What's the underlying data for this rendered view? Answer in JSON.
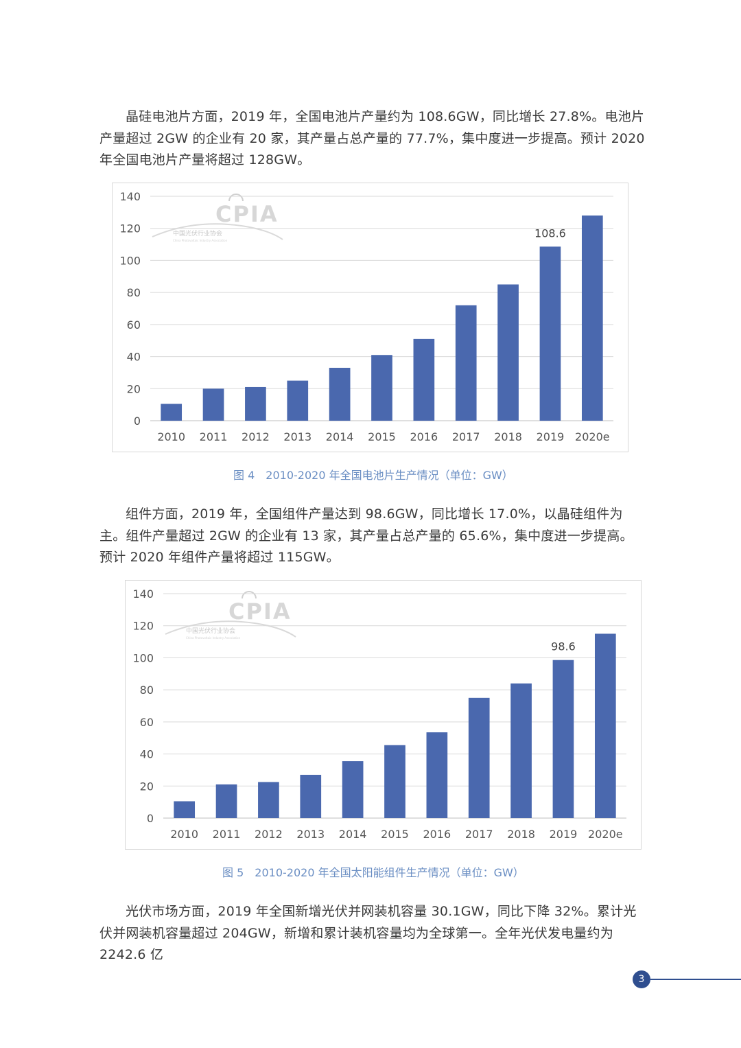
{
  "paragraphs": {
    "p1": "晶硅电池片方面，2019 年，全国电池片产量约为 108.6GW，同比增长 27.8%。电池片产量超过 2GW 的企业有 20 家，其产量占总产量的 77.7%，集中度进一步提高。预计 2020 年全国电池片产量将超过 128GW。",
    "p2": "组件方面，2019 年，全国组件产量达到 98.6GW，同比增长 17.0%，以晶硅组件为主。组件产量超过 2GW 的企业有 13 家，其产量占总产量的 65.6%，集中度进一步提高。预计 2020 年组件产量将超过 115GW。",
    "p3": "光伏市场方面，2019 年全国新增光伏并网装机容量 30.1GW，同比下降 32%。累计光伏并网装机容量超过 204GW，新增和累计装机容量均为全球第一。全年光伏发电量约为 2242.6 亿"
  },
  "captions": {
    "fig4_num": "图 4",
    "fig4_text": "2010-2020 年全国电池片生产情况（单位：GW）",
    "fig5_num": "图 5",
    "fig5_text": "2010-2020 年全国太阳能组件生产情况（单位：GW）"
  },
  "logo": {
    "name": "CPIA",
    "subtitle": "中国光伏行业协会",
    "subtitle_en": "China Photovoltaic Industry Association"
  },
  "page_number": "3",
  "colors": {
    "bar": "#4a68ae",
    "caption": "#6a8ec3",
    "page_badge": "#2f4e8f",
    "grid": "#d9d9d9"
  },
  "chart_data": [
    {
      "type": "bar",
      "categories": [
        "2010",
        "2011",
        "2012",
        "2013",
        "2014",
        "2015",
        "2016",
        "2017",
        "2018",
        "2019",
        "2020e"
      ],
      "values": [
        10.5,
        20,
        21,
        25,
        33,
        41,
        51,
        72,
        85,
        108.6,
        128
      ],
      "data_labels": {
        "2019": "108.6"
      },
      "ylim": [
        0,
        140
      ],
      "yticks": [
        0,
        20,
        40,
        60,
        80,
        100,
        120,
        140
      ],
      "grid": true
    },
    {
      "type": "bar",
      "categories": [
        "2010",
        "2011",
        "2012",
        "2013",
        "2014",
        "2015",
        "2016",
        "2017",
        "2018",
        "2019",
        "2020e"
      ],
      "values": [
        10.5,
        21,
        22.5,
        27,
        35.5,
        45.5,
        53.5,
        75,
        84,
        98.6,
        115
      ],
      "data_labels": {
        "2019": "98.6"
      },
      "ylim": [
        0,
        140
      ],
      "yticks": [
        0,
        20,
        40,
        60,
        80,
        100,
        120,
        140
      ],
      "grid": true
    }
  ]
}
